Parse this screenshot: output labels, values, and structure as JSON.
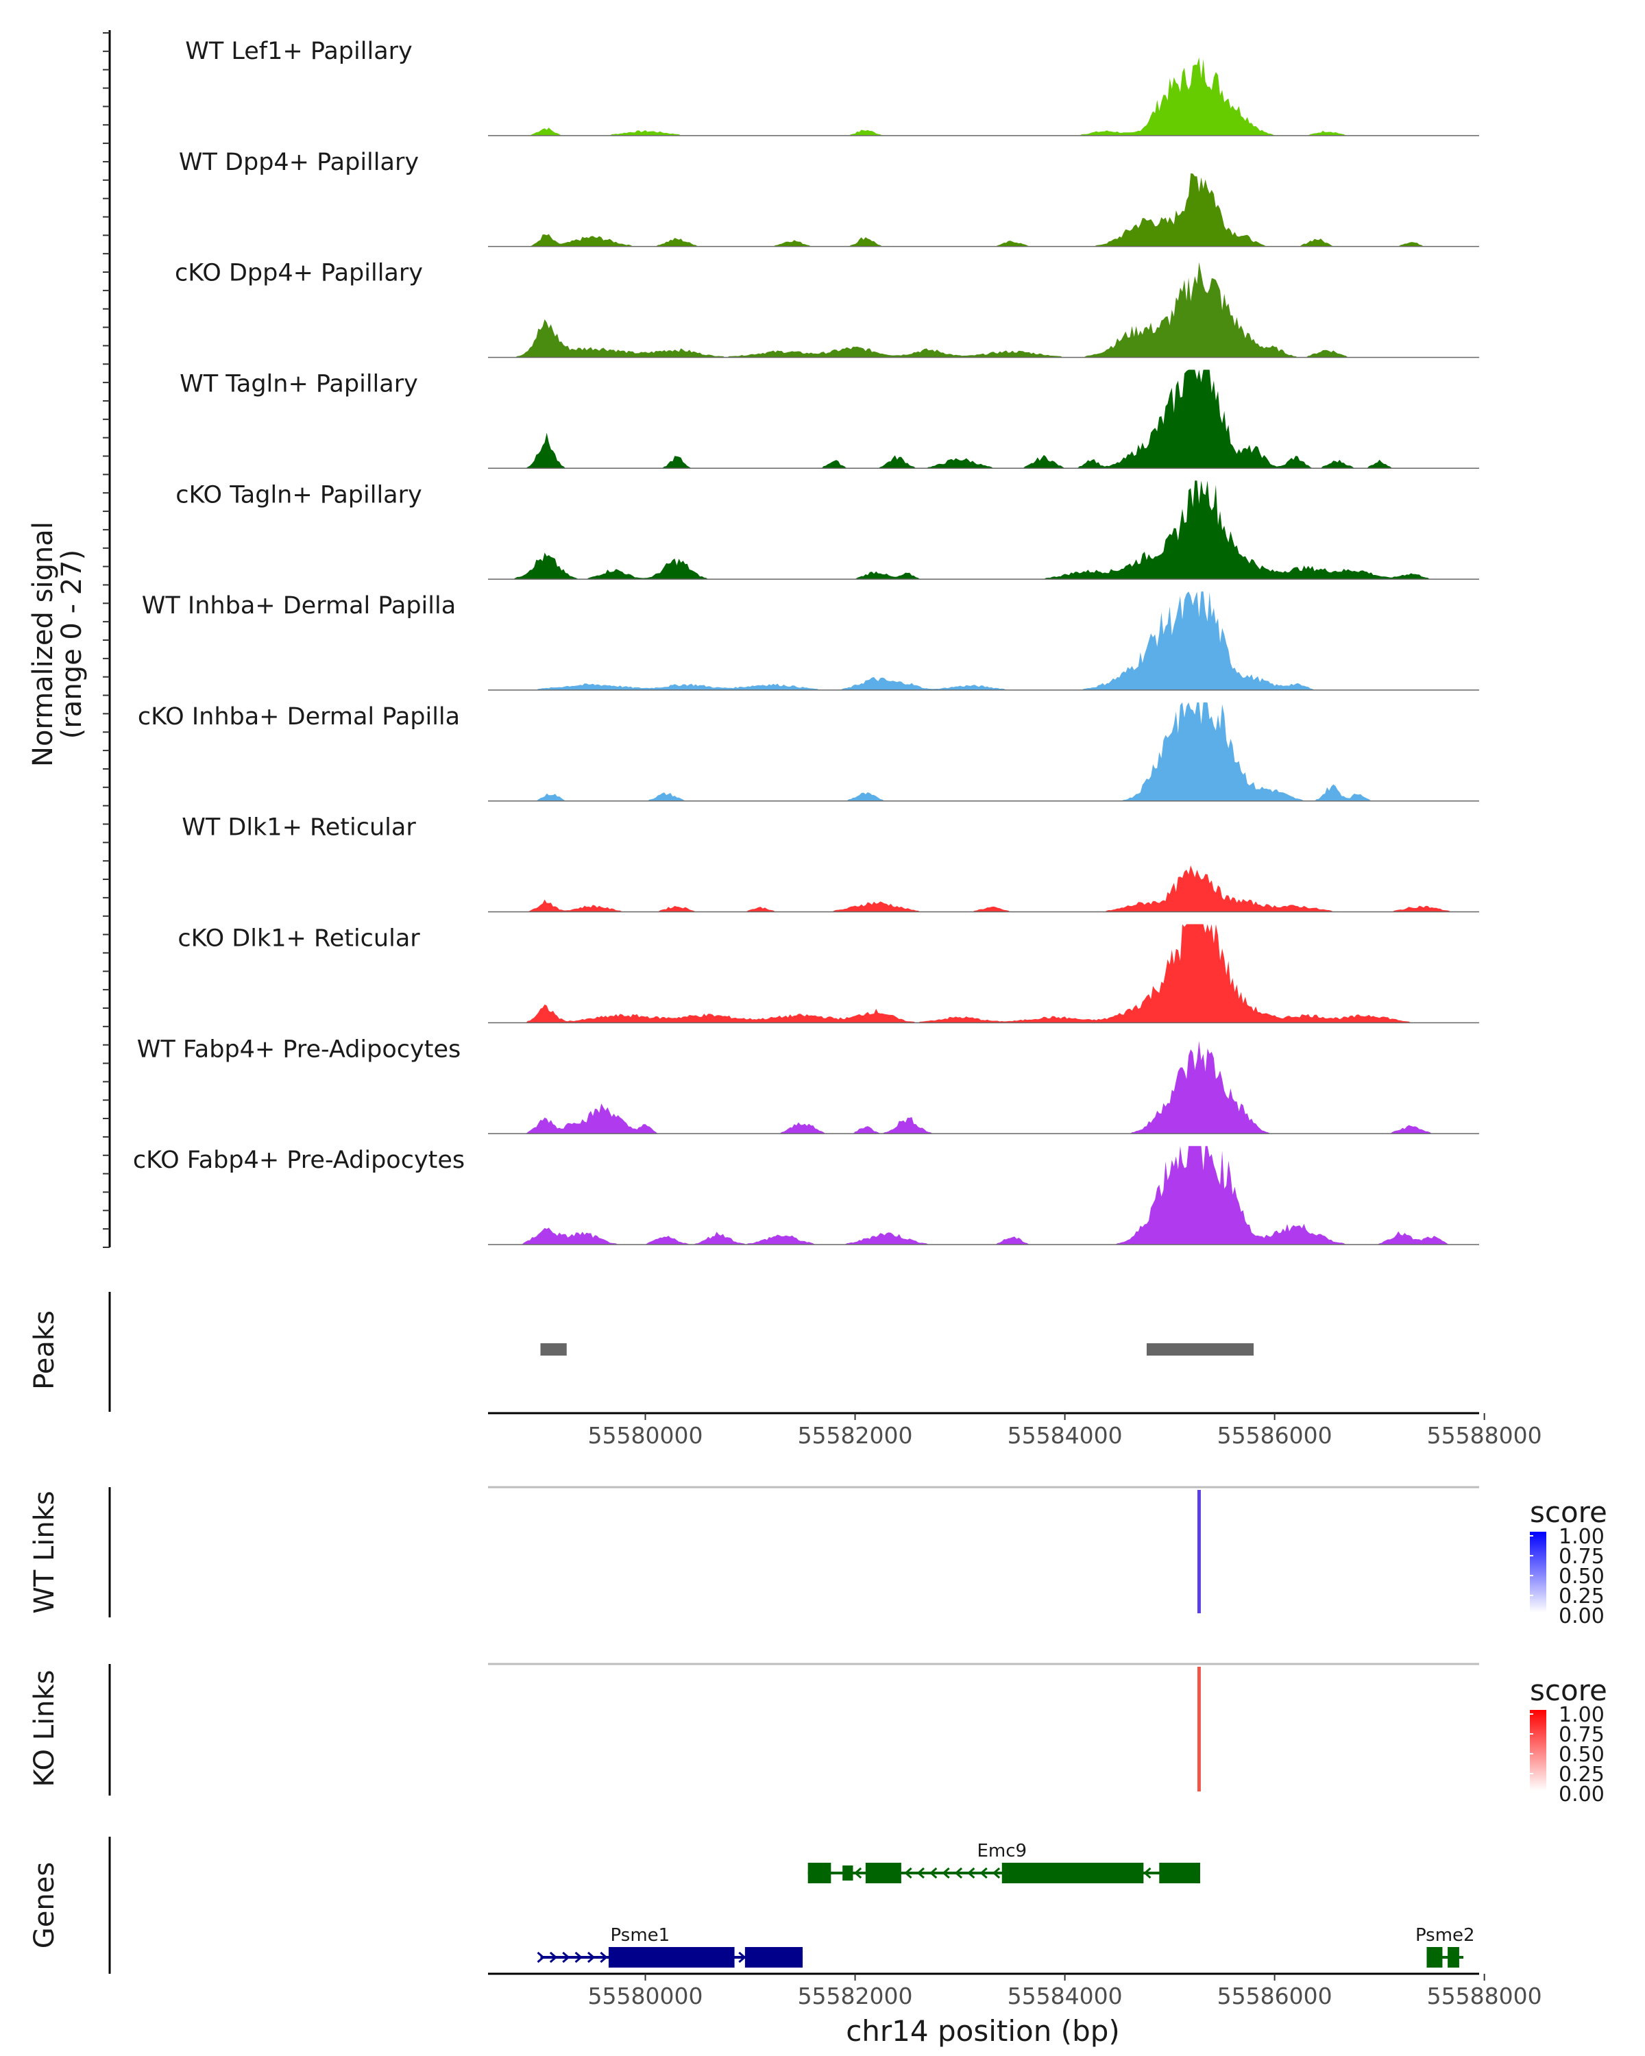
{
  "chart_data": {
    "type": "area",
    "title": "",
    "region": "chr14",
    "xlim": [
      55578500,
      55587950
    ],
    "xlabel": "chr14 position (bp)",
    "x_ticks": [
      55580000,
      55582000,
      55584000,
      55586000,
      55588000
    ],
    "x_tick_labels": [
      "55580000",
      "55582000",
      "55584000",
      "55586000",
      "55588000"
    ],
    "coverage": {
      "ylabel_line1": "Normalized signal",
      "ylabel_line2": "(range 0 - 27)",
      "ylim": [
        0,
        27
      ],
      "tracks": [
        {
          "name": "WT Lef1+ Papillary",
          "color": "#66CC00",
          "peaks": [
            [
              55579050,
              2,
              70
            ],
            [
              55580000,
              1.2,
              200
            ],
            [
              55582100,
              1.5,
              80
            ],
            [
              55584400,
              1.2,
              150
            ],
            [
              55584950,
              6,
              120
            ],
            [
              55585300,
              18,
              220
            ],
            [
              55585700,
              2.5,
              120
            ],
            [
              55586500,
              1.2,
              100
            ]
          ]
        },
        {
          "name": "WT Dpp4+ Papillary",
          "color": "#4D8F00",
          "peaks": [
            [
              55579050,
              3,
              60
            ],
            [
              55579500,
              2.5,
              180
            ],
            [
              55580300,
              2,
              100
            ],
            [
              55581400,
              1.6,
              90
            ],
            [
              55582100,
              2.5,
              70
            ],
            [
              55583500,
              1.4,
              80
            ],
            [
              55584800,
              7,
              200
            ],
            [
              55585300,
              19,
              150
            ],
            [
              55585700,
              2.5,
              100
            ],
            [
              55586400,
              2,
              80
            ],
            [
              55587300,
              1.2,
              70
            ]
          ]
        },
        {
          "name": "cKO Dpp4+ Papillary",
          "color": "#4A8C0F",
          "peaks": [
            [
              55579050,
              8,
              100
            ],
            [
              55579500,
              2.5,
              300
            ],
            [
              55580300,
              2,
              200
            ],
            [
              55581300,
              1.6,
              250
            ],
            [
              55582000,
              2.5,
              200
            ],
            [
              55582700,
              2,
              150
            ],
            [
              55583500,
              1.6,
              250
            ],
            [
              55584700,
              7,
              200
            ],
            [
              55585300,
              22,
              220
            ],
            [
              55585700,
              3,
              150
            ],
            [
              55586000,
              2,
              100
            ],
            [
              55586500,
              2,
              100
            ]
          ]
        },
        {
          "name": "WT Tagln+ Papillary",
          "color": "#006400",
          "peaks": [
            [
              55579050,
              8,
              70
            ],
            [
              55580300,
              3,
              60
            ],
            [
              55581800,
              2,
              60
            ],
            [
              55582400,
              3,
              80
            ],
            [
              55583000,
              2.5,
              150
            ],
            [
              55583800,
              3,
              90
            ],
            [
              55584250,
              2.5,
              60
            ],
            [
              55584700,
              3,
              150
            ],
            [
              55585100,
              17,
              200
            ],
            [
              55585350,
              22,
              150
            ],
            [
              55585800,
              5,
              100
            ],
            [
              55586200,
              3,
              70
            ],
            [
              55586600,
              2,
              80
            ],
            [
              55587000,
              2,
              60
            ]
          ]
        },
        {
          "name": "cKO Tagln+ Papillary",
          "color": "#006400",
          "peaks": [
            [
              55579050,
              6,
              120
            ],
            [
              55579700,
              2.5,
              120
            ],
            [
              55580300,
              5,
              120
            ],
            [
              55582200,
              2,
              100
            ],
            [
              55582500,
              1.5,
              60
            ],
            [
              55584200,
              2,
              200
            ],
            [
              55584900,
              7,
              250
            ],
            [
              55585320,
              26,
              160
            ],
            [
              55585700,
              5,
              150
            ],
            [
              55586300,
              3,
              250
            ],
            [
              55586800,
              2,
              150
            ],
            [
              55587300,
              1.5,
              100
            ]
          ]
        },
        {
          "name": "WT Inhba+ Dermal Papilla",
          "color": "#5BAEE8",
          "peaks": [
            [
              55579500,
              1.5,
              300
            ],
            [
              55580400,
              1.5,
              200
            ],
            [
              55581200,
              1.5,
              250
            ],
            [
              55582200,
              3,
              150
            ],
            [
              55582500,
              1.5,
              100
            ],
            [
              55583100,
              1.2,
              200
            ],
            [
              55584600,
              3,
              200
            ],
            [
              55585000,
              17,
              200
            ],
            [
              55585350,
              20,
              160
            ],
            [
              55585800,
              3,
              150
            ],
            [
              55586200,
              1.5,
              100
            ]
          ]
        },
        {
          "name": "cKO Inhba+ Dermal Papilla",
          "color": "#5BAEE8",
          "peaks": [
            [
              55579100,
              2,
              70
            ],
            [
              55580200,
              2,
              90
            ],
            [
              55582100,
              2,
              90
            ],
            [
              55584950,
              8,
              150
            ],
            [
              55585200,
              22,
              180
            ],
            [
              55585500,
              17,
              150
            ],
            [
              55585950,
              3,
              150
            ],
            [
              55586550,
              4,
              70
            ],
            [
              55586800,
              2,
              60
            ]
          ]
        },
        {
          "name": "WT Dlk1+ Reticular",
          "color": "#FF3333",
          "peaks": [
            [
              55579050,
              3,
              70
            ],
            [
              55579500,
              1.6,
              150
            ],
            [
              55580300,
              1.5,
              100
            ],
            [
              55581100,
              1.2,
              80
            ],
            [
              55582200,
              2.5,
              200
            ],
            [
              55583300,
              1.2,
              100
            ],
            [
              55584800,
              2.5,
              200
            ],
            [
              55585100,
              5,
              100
            ],
            [
              55585300,
              10,
              120
            ],
            [
              55585650,
              3,
              200
            ],
            [
              55586200,
              1.5,
              200
            ],
            [
              55587400,
              1.5,
              150
            ]
          ]
        },
        {
          "name": "cKO Dlk1+ Reticular",
          "color": "#FF3333",
          "peaks": [
            [
              55579050,
              4,
              80
            ],
            [
              55579800,
              2,
              300
            ],
            [
              55580600,
              2,
              250
            ],
            [
              55581500,
              2,
              300
            ],
            [
              55582200,
              3,
              150
            ],
            [
              55583000,
              1.5,
              200
            ],
            [
              55583900,
              1.5,
              250
            ],
            [
              55584700,
              3,
              200
            ],
            [
              55585100,
              14,
              200
            ],
            [
              55585350,
              24,
              160
            ],
            [
              55585700,
              4,
              180
            ],
            [
              55586300,
              2,
              200
            ],
            [
              55586900,
              2,
              200
            ]
          ]
        },
        {
          "name": "WT Fabp4+ Pre-Adipocytes",
          "color": "#B03AEE",
          "peaks": [
            [
              55579050,
              4,
              80
            ],
            [
              55579300,
              2.5,
              60
            ],
            [
              55579600,
              7,
              150
            ],
            [
              55580000,
              2,
              60
            ],
            [
              55581500,
              3,
              100
            ],
            [
              55582100,
              2,
              60
            ],
            [
              55582500,
              4,
              100
            ],
            [
              55585000,
              5,
              150
            ],
            [
              55585320,
              21,
              200
            ],
            [
              55585700,
              3,
              100
            ],
            [
              55587300,
              2,
              100
            ]
          ]
        },
        {
          "name": "cKO Fabp4+ Pre-Adipocytes",
          "color": "#B03AEE",
          "peaks": [
            [
              55579050,
              4,
              100
            ],
            [
              55579400,
              3,
              150
            ],
            [
              55580200,
              2,
              100
            ],
            [
              55580700,
              3,
              100
            ],
            [
              55581300,
              2.5,
              150
            ],
            [
              55582300,
              3,
              180
            ],
            [
              55583500,
              2,
              80
            ],
            [
              55584800,
              2,
              150
            ],
            [
              55585000,
              13,
              150
            ],
            [
              55585300,
              25,
              200
            ],
            [
              55585600,
              9,
              100
            ],
            [
              55586200,
              5,
              200
            ],
            [
              55587200,
              3,
              100
            ],
            [
              55587500,
              2,
              80
            ]
          ]
        }
      ]
    },
    "peaks_track": {
      "label": "Peaks",
      "color": "#666666",
      "regions": [
        [
          55579000,
          55579250
        ],
        [
          55584780,
          55585800
        ]
      ]
    },
    "links_tracks": [
      {
        "label": "WT Links",
        "legend_title": "score",
        "legend_ticks": [
          "1.00",
          "0.75",
          "0.50",
          "0.25",
          "0.00"
        ],
        "color_low": "#FFFFFF",
        "color_high": "#0000FF",
        "arc_start": 55585270,
        "arc_end": 55585290,
        "score": 0.65
      },
      {
        "label": "KO Links",
        "legend_title": "score",
        "legend_ticks": [
          "1.00",
          "0.75",
          "0.50",
          "0.25",
          "0.00"
        ],
        "color_low": "#FFFFFF",
        "color_high": "#FF0000",
        "arc_start": 55585270,
        "arc_end": 55585290,
        "score": 0.65
      }
    ],
    "genes_track": {
      "label": "Genes",
      "genes": [
        {
          "name": "Emc9",
          "strand": "-",
          "color": "#006400",
          "row": 0,
          "start": 55581550,
          "end": 55585290,
          "exons": [
            [
              55581550,
              55581770
            ],
            [
              55581880,
              55581980
            ],
            [
              55582100,
              55582440
            ],
            [
              55583400,
              55584750
            ],
            [
              55584900,
              55585290
            ]
          ]
        },
        {
          "name": "Psme1",
          "strand": "+",
          "color": "#00008B",
          "row": 1,
          "start": 55579000,
          "end": 55581500,
          "exons": [
            [
              55579650,
              55580850
            ],
            [
              55580950,
              55581500
            ]
          ]
        },
        {
          "name": "Psme2",
          "strand": "-",
          "color": "#006400",
          "row": 1,
          "start": 55587450,
          "end": 55587800,
          "exons": [
            [
              55587450,
              55587600
            ],
            [
              55587650,
              55587760
            ]
          ]
        }
      ]
    }
  }
}
